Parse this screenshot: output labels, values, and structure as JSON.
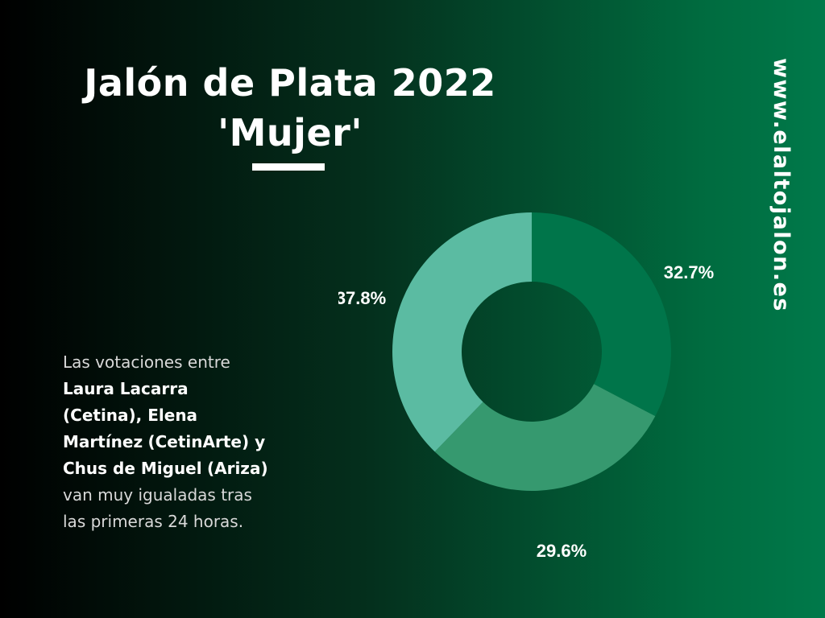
{
  "header": {
    "title_line1": "Jalón de Plata 2022",
    "title_line2": "'Mujer'"
  },
  "website": "www.elaltojalon.es",
  "description": {
    "intro": "Las votaciones entre",
    "name1": "Laura Lacarra",
    "place1": "(Cetina), Elena",
    "name2": "Martínez",
    "place2": "(CetinArte) y",
    "name3": "Chus de Miguel",
    "place3": "(Ariza)",
    "end1": "van muy igualadas tras",
    "end2": "las primeras 24 horas."
  },
  "colors": {
    "slice1": "#00754a",
    "slice2": "#36996f",
    "slice3": "#5bbba2"
  },
  "chart_data": {
    "type": "pie",
    "donut": true,
    "values": [
      32.7,
      29.6,
      37.8
    ],
    "labels": [
      "32.7%",
      "29.6%",
      "37.8%"
    ],
    "title": "",
    "legend": "none"
  }
}
